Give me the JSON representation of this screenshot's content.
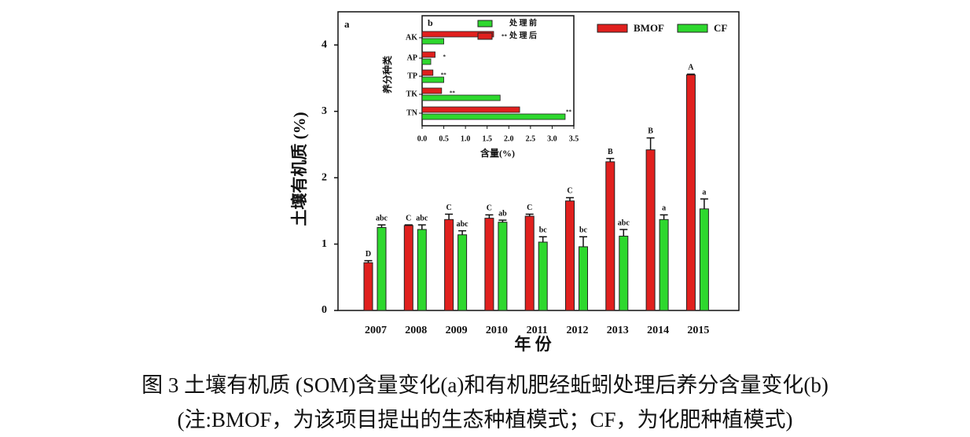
{
  "chart_data": [
    {
      "type": "bar",
      "panel": "a",
      "xlabel": "年  份",
      "ylabel": "土壤有机质 (%)",
      "categories": [
        "2007",
        "2008",
        "2009",
        "2010",
        "2011",
        "2012",
        "2013",
        "2014",
        "2015"
      ],
      "series": [
        {
          "name": "BMOF",
          "color": "#e0201e",
          "values": [
            0.72,
            1.28,
            1.37,
            1.39,
            1.42,
            1.65,
            2.24,
            2.42,
            3.55
          ],
          "errors": [
            0.03,
            0.01,
            0.08,
            0.05,
            0.03,
            0.05,
            0.05,
            0.18,
            0.01
          ],
          "letters": [
            "D",
            "C",
            "C",
            "C",
            "C",
            "C",
            "B",
            "B",
            "A"
          ]
        },
        {
          "name": "CF",
          "color": "#2ed82e",
          "values": [
            1.25,
            1.22,
            1.14,
            1.33,
            1.03,
            0.96,
            1.12,
            1.37,
            1.53
          ],
          "errors": [
            0.04,
            0.07,
            0.06,
            0.03,
            0.08,
            0.15,
            0.1,
            0.07,
            0.15
          ],
          "letters": [
            "abc",
            "abc",
            "abc",
            "ab",
            "bc",
            "bc",
            "abc",
            "a",
            "a"
          ]
        }
      ],
      "ylim": [
        0,
        4.5
      ],
      "yticks": [
        0,
        1,
        2,
        3,
        4
      ]
    },
    {
      "type": "barh",
      "panel": "b",
      "xlabel": "含量(%)",
      "ylabel": "养分种类",
      "categories": [
        "AK",
        "AP",
        "TP",
        "TK",
        "TN"
      ],
      "series": [
        {
          "name": "处 理 前",
          "color": "#2ed82e",
          "values": [
            0.5,
            0.2,
            0.5,
            1.8,
            3.3
          ]
        },
        {
          "name": "处 理 后",
          "color": "#e0201e",
          "values": [
            1.65,
            0.3,
            0.25,
            0.45,
            2.25
          ]
        }
      ],
      "significance": [
        "**",
        "*",
        "**",
        "**",
        "**"
      ],
      "xlim": [
        0,
        3.5
      ],
      "xticks": [
        {
          "value": 0,
          "label": "0.0"
        },
        0.5,
        {
          "value": 1,
          "label": "1.0"
        },
        1.5,
        {
          "value": 2,
          "label": "2.0"
        },
        2.5,
        {
          "value": 3,
          "label": "3.0"
        },
        3.5
      ]
    }
  ],
  "caption": [
    "图 3  土壤有机质 (SOM)含量变化(a)和有机肥经蚯蚓处理后养分含量变化(b)",
    "(注:BMOF，为该项目提出的生态种植模式；CF，为化肥种植模式)"
  ]
}
